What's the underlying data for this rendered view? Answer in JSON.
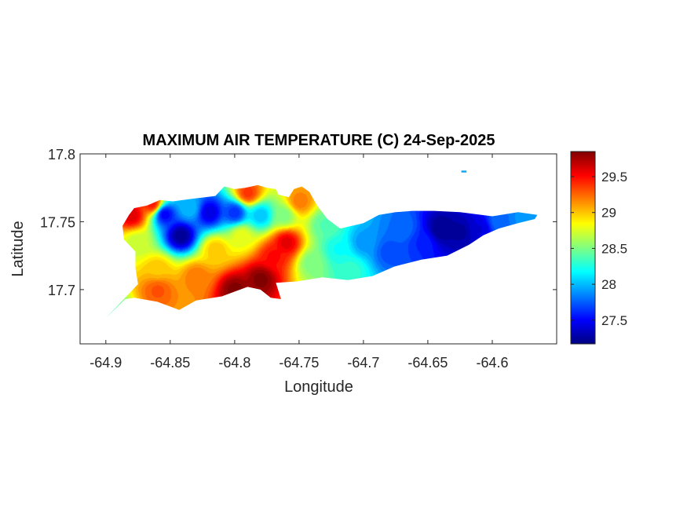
{
  "chart_data": {
    "type": "heatmap",
    "title": "MAXIMUM AIR TEMPERATURE (C) 24-Sep-2025",
    "xlabel": "Longitude",
    "ylabel": "Latitude",
    "xlim": [
      -64.92,
      -64.55
    ],
    "ylim": [
      17.66,
      17.8
    ],
    "xticks": [
      -64.9,
      -64.85,
      -64.8,
      -64.75,
      -64.7,
      -64.65,
      -64.6
    ],
    "xtick_labels": [
      "-64.9",
      "-64.85",
      "-64.8",
      "-64.75",
      "-64.7",
      "-64.65",
      "-64.6"
    ],
    "yticks": [
      17.7,
      17.75,
      17.8
    ],
    "ytick_labels": [
      "17.7",
      "17.75",
      "17.8"
    ],
    "colormap": "jet",
    "clim": [
      27.17,
      29.85
    ],
    "colorbar_ticks": [
      27.5,
      28,
      28.5,
      29,
      29.5
    ],
    "colorbar_tick_labels": [
      "27.5",
      "28",
      "28.5",
      "29",
      "29.5"
    ],
    "grid": false,
    "land_outline": [
      [
        -64.9,
        17.679
      ],
      [
        -64.885,
        17.693
      ],
      [
        -64.878,
        17.694
      ],
      [
        -64.86,
        17.691
      ],
      [
        -64.843,
        17.685
      ],
      [
        -64.83,
        17.692
      ],
      [
        -64.81,
        17.695
      ],
      [
        -64.79,
        17.702
      ],
      [
        -64.78,
        17.7
      ],
      [
        -64.772,
        17.694
      ],
      [
        -64.764,
        17.693
      ],
      [
        -64.768,
        17.705
      ],
      [
        -64.752,
        17.706
      ],
      [
        -64.732,
        17.709
      ],
      [
        -64.712,
        17.707
      ],
      [
        -64.693,
        17.71
      ],
      [
        -64.676,
        17.717
      ],
      [
        -64.655,
        17.722
      ],
      [
        -64.635,
        17.725
      ],
      [
        -64.618,
        17.733
      ],
      [
        -64.607,
        17.74
      ],
      [
        -64.595,
        17.745
      ],
      [
        -64.58,
        17.749
      ],
      [
        -64.567,
        17.752
      ],
      [
        -64.565,
        17.755
      ],
      [
        -64.58,
        17.757
      ],
      [
        -64.6,
        17.754
      ],
      [
        -64.625,
        17.757
      ],
      [
        -64.645,
        17.758
      ],
      [
        -64.662,
        17.758
      ],
      [
        -64.675,
        17.757
      ],
      [
        -64.688,
        17.755
      ],
      [
        -64.7,
        17.749
      ],
      [
        -64.718,
        17.745
      ],
      [
        -64.728,
        17.752
      ],
      [
        -64.736,
        17.762
      ],
      [
        -64.742,
        17.772
      ],
      [
        -64.748,
        17.776
      ],
      [
        -64.754,
        17.774
      ],
      [
        -64.758,
        17.768
      ],
      [
        -64.766,
        17.77
      ],
      [
        -64.768,
        17.774
      ],
      [
        -64.775,
        17.775
      ],
      [
        -64.782,
        17.777
      ],
      [
        -64.792,
        17.775
      ],
      [
        -64.8,
        17.774
      ],
      [
        -64.808,
        17.776
      ],
      [
        -64.815,
        17.769
      ],
      [
        -64.832,
        17.767
      ],
      [
        -64.848,
        17.765
      ],
      [
        -64.858,
        17.766
      ],
      [
        -64.868,
        17.762
      ],
      [
        -64.878,
        17.76
      ],
      [
        -64.882,
        17.755
      ],
      [
        -64.887,
        17.747
      ],
      [
        -64.886,
        17.737
      ],
      [
        -64.877,
        17.728
      ],
      [
        -64.877,
        17.716
      ],
      [
        -64.875,
        17.704
      ],
      [
        -64.885,
        17.694
      ],
      [
        -64.893,
        17.686
      ],
      [
        -64.9,
        17.679
      ]
    ],
    "islet": [
      [
        -64.624,
        17.787
      ],
      [
        -64.62,
        17.787
      ]
    ],
    "features": [
      {
        "lon": -64.88,
        "lat": 17.755,
        "value": 29.6
      },
      {
        "lon": -64.876,
        "lat": 17.735,
        "value": 28.7
      },
      {
        "lon": -64.864,
        "lat": 17.763,
        "value": 29.5
      },
      {
        "lon": -64.855,
        "lat": 17.756,
        "value": 27.45
      },
      {
        "lon": -64.842,
        "lat": 17.74,
        "value": 27.2
      },
      {
        "lon": -64.82,
        "lat": 17.757,
        "value": 27.4
      },
      {
        "lon": -64.8,
        "lat": 17.757,
        "value": 27.6
      },
      {
        "lon": -64.86,
        "lat": 17.715,
        "value": 29.0
      },
      {
        "lon": -64.86,
        "lat": 17.7,
        "value": 29.3
      },
      {
        "lon": -64.83,
        "lat": 17.71,
        "value": 29.2
      },
      {
        "lon": -64.815,
        "lat": 17.73,
        "value": 29.0
      },
      {
        "lon": -64.8,
        "lat": 17.7,
        "value": 29.85
      },
      {
        "lon": -64.78,
        "lat": 17.708,
        "value": 29.85
      },
      {
        "lon": -64.795,
        "lat": 17.74,
        "value": 28.8
      },
      {
        "lon": -64.77,
        "lat": 17.725,
        "value": 29.5
      },
      {
        "lon": -64.76,
        "lat": 17.735,
        "value": 29.6
      },
      {
        "lon": -64.75,
        "lat": 17.765,
        "value": 29.2
      },
      {
        "lon": -64.762,
        "lat": 17.755,
        "value": 28.5
      },
      {
        "lon": -64.79,
        "lat": 17.771,
        "value": 29.4
      },
      {
        "lon": -64.835,
        "lat": 17.76,
        "value": 28.0
      },
      {
        "lon": -64.78,
        "lat": 17.755,
        "value": 28.0
      },
      {
        "lon": -64.74,
        "lat": 17.72,
        "value": 28.5
      },
      {
        "lon": -64.72,
        "lat": 17.73,
        "value": 28.2
      },
      {
        "lon": -64.71,
        "lat": 17.715,
        "value": 28.3
      },
      {
        "lon": -64.73,
        "lat": 17.748,
        "value": 28.4
      },
      {
        "lon": -64.7,
        "lat": 17.735,
        "value": 27.9
      },
      {
        "lon": -64.68,
        "lat": 17.728,
        "value": 27.7
      },
      {
        "lon": -64.67,
        "lat": 17.745,
        "value": 27.8
      },
      {
        "lon": -64.655,
        "lat": 17.735,
        "value": 27.6
      },
      {
        "lon": -64.64,
        "lat": 17.745,
        "value": 27.2
      },
      {
        "lon": -64.625,
        "lat": 17.743,
        "value": 27.25
      },
      {
        "lon": -64.61,
        "lat": 17.745,
        "value": 27.4
      },
      {
        "lon": -64.595,
        "lat": 17.75,
        "value": 27.8
      },
      {
        "lon": -64.575,
        "lat": 17.753,
        "value": 27.9
      },
      {
        "lon": -64.622,
        "lat": 17.787,
        "value": 28.1
      },
      {
        "lon": -64.895,
        "lat": 17.683,
        "value": 28.4
      }
    ]
  }
}
